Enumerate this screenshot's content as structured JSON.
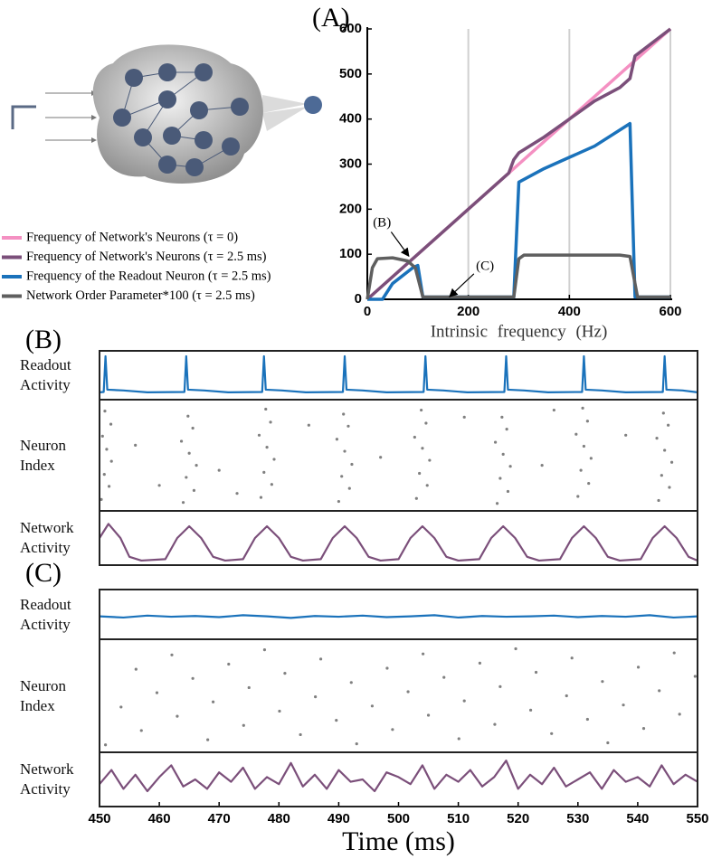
{
  "chart_data": [
    {
      "type": "line",
      "panel": "(A)",
      "xlabel": "Intrinsic frequency (Hz)",
      "xlim": [
        0,
        600
      ],
      "ylim": [
        0,
        600
      ],
      "xticks": [
        0,
        200,
        400,
        600
      ],
      "yticks": [
        0,
        100,
        200,
        300,
        400,
        500,
        600
      ],
      "grid": "x",
      "series": [
        {
          "name": "Frequency of Network's Neurons (τ = 0)",
          "color": "#f490c2",
          "x": [
            0,
            600
          ],
          "values": [
            0,
            600
          ]
        },
        {
          "name": "Frequency of Network's Neurons (τ = 2.5 ms)",
          "color": "#7b4f7a",
          "x": [
            0,
            280,
            290,
            300,
            350,
            400,
            450,
            500,
            520,
            530,
            600
          ],
          "values": [
            0,
            280,
            310,
            325,
            360,
            400,
            440,
            470,
            490,
            540,
            600
          ]
        },
        {
          "name": "Frequency of the Readout Neuron (τ = 2.5 ms)",
          "color": "#1a72bb",
          "x": [
            0,
            30,
            50,
            90,
            100,
            110,
            290,
            300,
            350,
            400,
            450,
            520,
            530,
            600
          ],
          "values": [
            0,
            0,
            35,
            70,
            75,
            5,
            5,
            260,
            290,
            315,
            340,
            390,
            5,
            5
          ]
        },
        {
          "name": "Network Order Parameter*100 (τ = 2.5 ms)",
          "color": "#5f5f5f",
          "x": [
            0,
            10,
            20,
            50,
            80,
            95,
            110,
            290,
            300,
            310,
            500,
            520,
            535,
            600
          ],
          "values": [
            0,
            70,
            90,
            92,
            85,
            70,
            5,
            5,
            90,
            98,
            98,
            95,
            5,
            5
          ]
        }
      ],
      "annotations": [
        {
          "text": "(B)",
          "xy": [
            29,
            168
          ],
          "arrow": [
            82,
            96
          ]
        },
        {
          "text": "(C)",
          "xy": [
            233,
            72
          ],
          "arrow": [
            163,
            6
          ]
        }
      ]
    },
    {
      "type": "line",
      "panel": "(B)",
      "ylabel": "Readout Activity",
      "color": "#1a72bb",
      "xlim": [
        450,
        550
      ],
      "ylim": [
        0,
        1
      ],
      "x": [
        450,
        450.7,
        451,
        451.3,
        454,
        458,
        464.2,
        464.5,
        464.8,
        467.5,
        471.5,
        477.2,
        477.5,
        477.8,
        480.5,
        484.5,
        490.7,
        491,
        491.3,
        494,
        498,
        504.2,
        504.5,
        504.8,
        507.5,
        511.5,
        517.7,
        518,
        518.3,
        521,
        525,
        530.7,
        531,
        531.3,
        534,
        538,
        544.2,
        544.5,
        544.8,
        547.5,
        550
      ],
      "values": [
        0.05,
        0.06,
        1,
        0.12,
        0.1,
        0.05,
        0.06,
        1,
        0.12,
        0.1,
        0.05,
        0.06,
        1,
        0.12,
        0.1,
        0.05,
        0.06,
        1,
        0.12,
        0.1,
        0.05,
        0.06,
        1,
        0.12,
        0.1,
        0.05,
        0.06,
        1,
        0.12,
        0.1,
        0.05,
        0.06,
        1,
        0.12,
        0.1,
        0.05,
        0.06,
        1,
        0.12,
        0.1,
        0.05
      ]
    },
    {
      "type": "scatter",
      "ylabel": "Neuron Index",
      "color": "#808080",
      "xlim": [
        450,
        550
      ],
      "ylim": [
        0,
        100
      ],
      "x": [
        450.3,
        451.6,
        450.8,
        452.0,
        451.2,
        450.5,
        451.9,
        450.9,
        464,
        465.8,
        464.5,
        466.2,
        465,
        463.7,
        465.6,
        464.8,
        477,
        478.8,
        477.5,
        479.2,
        478,
        476.7,
        478.6,
        477.8,
        490,
        491.8,
        490.5,
        492.2,
        491,
        489.7,
        491.6,
        490.8,
        503,
        504.8,
        503.5,
        505.2,
        504,
        502.7,
        504.6,
        503.8,
        516.5,
        518.3,
        517,
        518.7,
        517.5,
        516.2,
        518.1,
        517.3,
        530,
        531.8,
        530.5,
        532.2,
        531,
        529.7,
        531.6,
        530.8,
        543.5,
        545.3,
        544,
        545.7,
        544.5,
        543.2,
        545.1,
        544.3,
        456,
        460,
        470,
        485,
        497,
        511,
        524,
        538,
        473,
        526
      ],
      "values": [
        6,
        19,
        31,
        44,
        56,
        69,
        81,
        94,
        3,
        15,
        28,
        40,
        52,
        64,
        77,
        89,
        8,
        21,
        33,
        46,
        58,
        70,
        83,
        96,
        4,
        17,
        29,
        41,
        54,
        66,
        79,
        91,
        7,
        20,
        32,
        45,
        57,
        68,
        82,
        95,
        2,
        14,
        27,
        39,
        51,
        63,
        76,
        88,
        9,
        22,
        35,
        47,
        59,
        71,
        84,
        97,
        5,
        18,
        30,
        43,
        55,
        67,
        80,
        92,
        60,
        20,
        35,
        80,
        48,
        88,
        40,
        70,
        12,
        95
      ]
    },
    {
      "type": "line",
      "ylabel": "Network Activity",
      "color": "#7b4f7a",
      "xlim": [
        450,
        550
      ],
      "ylim": [
        0,
        1
      ],
      "x": [
        450,
        451.5,
        453.5,
        455,
        457,
        461,
        463,
        465,
        467,
        469,
        471,
        474,
        476,
        478,
        480,
        482,
        484,
        487,
        489,
        491,
        493,
        495,
        497,
        500,
        502,
        504,
        506,
        508,
        510,
        513.5,
        515.5,
        517.5,
        519.5,
        521.5,
        523.5,
        527,
        529,
        531,
        533,
        535,
        537,
        540.5,
        542.5,
        544.5,
        546.5,
        548.5,
        550
      ],
      "values": [
        0.5,
        0.8,
        0.5,
        0.1,
        0.02,
        0.05,
        0.5,
        0.75,
        0.5,
        0.1,
        0.02,
        0.05,
        0.5,
        0.75,
        0.5,
        0.1,
        0.02,
        0.05,
        0.5,
        0.75,
        0.5,
        0.1,
        0.02,
        0.05,
        0.5,
        0.75,
        0.5,
        0.1,
        0.02,
        0.05,
        0.5,
        0.75,
        0.5,
        0.1,
        0.02,
        0.05,
        0.5,
        0.75,
        0.5,
        0.1,
        0.02,
        0.05,
        0.5,
        0.75,
        0.5,
        0.1,
        0.02
      ]
    },
    {
      "type": "line",
      "panel": "(C)",
      "ylabel": "Readout Activity",
      "color": "#1a72bb",
      "xlim": [
        450,
        550
      ],
      "ylim": [
        0,
        1
      ],
      "x": [
        450,
        454,
        458,
        462,
        466,
        470,
        474,
        478,
        482,
        486,
        490,
        494,
        498,
        502,
        506,
        510,
        514,
        518,
        522,
        526,
        530,
        534,
        538,
        542,
        546,
        550
      ],
      "values": [
        0.45,
        0.42,
        0.47,
        0.44,
        0.46,
        0.43,
        0.48,
        0.45,
        0.41,
        0.46,
        0.44,
        0.47,
        0.43,
        0.45,
        0.48,
        0.42,
        0.46,
        0.44,
        0.45,
        0.47,
        0.43,
        0.46,
        0.44,
        0.48,
        0.42,
        0.45
      ]
    },
    {
      "type": "scatter",
      "ylabel": "Neuron Index",
      "color": "#808080",
      "xlim": [
        450,
        550
      ],
      "ylim": [
        0,
        100
      ],
      "x": [
        451,
        453.6,
        456.1,
        457,
        459.6,
        462.1,
        463,
        465.6,
        468.1,
        469,
        471.6,
        474.1,
        475,
        477.6,
        480.1,
        481,
        483.6,
        486.1,
        487,
        489.6,
        492.1,
        493,
        495.6,
        498.1,
        499,
        501.6,
        504.1,
        505,
        507.6,
        510.1,
        511,
        513.6,
        516.1,
        517,
        519.6,
        522.1,
        523,
        525.6,
        528.1,
        529,
        531.6,
        534.1,
        535,
        537.6,
        540.1,
        541,
        543.6,
        546.1,
        547,
        549.6
      ],
      "values": [
        2,
        39,
        76,
        16,
        53,
        90,
        30,
        67,
        7,
        44,
        81,
        21,
        58,
        95,
        35,
        72,
        12,
        49,
        86,
        26,
        63,
        3,
        40,
        77,
        17,
        54,
        91,
        31,
        68,
        8,
        45,
        82,
        22,
        59,
        96,
        36,
        73,
        13,
        50,
        87,
        27,
        64,
        4,
        41,
        78,
        18,
        55,
        92,
        32,
        69
      ]
    },
    {
      "type": "line",
      "ylabel": "Network Activity",
      "color": "#7b4f7a",
      "xlim": [
        450,
        550
      ],
      "ylim": [
        0,
        1
      ],
      "xlabel": "Time (ms)",
      "xticks": [
        450,
        460,
        470,
        480,
        490,
        500,
        510,
        520,
        530,
        540,
        550
      ],
      "x": [
        450,
        452,
        454,
        456,
        458,
        460,
        462,
        464,
        466,
        468,
        470,
        472,
        474,
        476,
        478,
        480,
        482,
        484,
        486,
        488,
        490,
        492,
        494,
        496,
        498,
        500,
        502,
        504,
        506,
        508,
        510,
        512,
        514,
        516,
        518,
        520,
        522,
        524,
        526,
        528,
        530,
        532,
        534,
        536,
        538,
        540,
        542,
        544,
        546,
        548,
        550
      ],
      "values": [
        0.4,
        0.7,
        0.3,
        0.6,
        0.25,
        0.55,
        0.8,
        0.35,
        0.5,
        0.3,
        0.65,
        0.45,
        0.75,
        0.3,
        0.55,
        0.4,
        0.85,
        0.35,
        0.6,
        0.3,
        0.7,
        0.45,
        0.5,
        0.25,
        0.65,
        0.55,
        0.4,
        0.8,
        0.3,
        0.6,
        0.45,
        0.7,
        0.35,
        0.55,
        0.9,
        0.3,
        0.6,
        0.4,
        0.75,
        0.35,
        0.5,
        0.65,
        0.3,
        0.7,
        0.45,
        0.55,
        0.35,
        0.8,
        0.4,
        0.6,
        0.45
      ]
    }
  ]
}
